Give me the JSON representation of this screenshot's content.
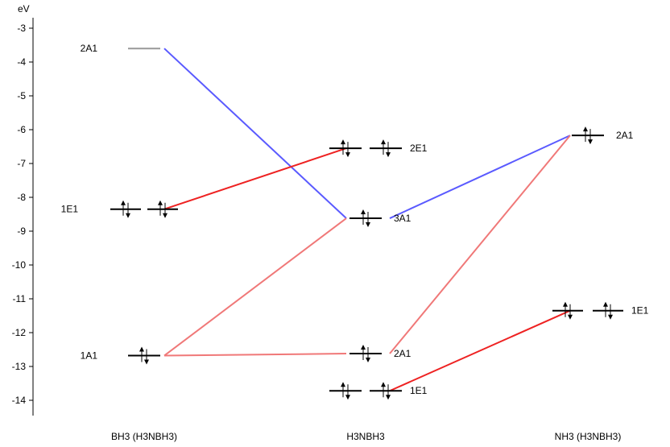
{
  "axis": {
    "unit_label": "eV",
    "ticks": [
      -3,
      -4,
      -5,
      -6,
      -7,
      -8,
      -9,
      -10,
      -11,
      -12,
      -13,
      -14
    ]
  },
  "columns": [
    {
      "id": "bh3",
      "label": "BH3 (H3NBH3)"
    },
    {
      "id": "h3nbh3",
      "label": "H3NBH3"
    },
    {
      "id": "nh3",
      "label": "NH3 (H3NBH3)"
    }
  ],
  "levels": [
    {
      "id": "bh3-2a1",
      "column": "bh3",
      "label": "2A1",
      "energy": -3.6,
      "degeneracy": 1,
      "electrons": 0,
      "color": "#999999"
    },
    {
      "id": "bh3-1e1",
      "column": "bh3",
      "label": "1E1",
      "energy": -8.35,
      "degeneracy": 2,
      "electrons": 4,
      "color": "#000000"
    },
    {
      "id": "bh3-1a1",
      "column": "bh3",
      "label": "1A1",
      "energy": -12.68,
      "degeneracy": 1,
      "electrons": 2,
      "color": "#000000"
    },
    {
      "id": "h3nbh3-2e1",
      "column": "h3nbh3",
      "label": "2E1",
      "energy": -6.55,
      "degeneracy": 2,
      "electrons": 4,
      "color": "#000000"
    },
    {
      "id": "h3nbh3-3a1",
      "column": "h3nbh3",
      "label": "3A1",
      "energy": -8.62,
      "degeneracy": 1,
      "electrons": 2,
      "color": "#000000"
    },
    {
      "id": "h3nbh3-2a1",
      "column": "h3nbh3",
      "label": "2A1",
      "energy": -12.62,
      "degeneracy": 1,
      "electrons": 2,
      "color": "#000000"
    },
    {
      "id": "h3nbh3-1e1",
      "column": "h3nbh3",
      "label": "1E1",
      "energy": -13.72,
      "degeneracy": 2,
      "electrons": 4,
      "color": "#000000"
    },
    {
      "id": "nh3-2a1",
      "column": "nh3",
      "label": "2A1",
      "energy": -6.17,
      "degeneracy": 1,
      "electrons": 2,
      "color": "#000000"
    },
    {
      "id": "nh3-1e1",
      "column": "nh3",
      "label": "1E1",
      "energy": -11.35,
      "degeneracy": 2,
      "electrons": 4,
      "color": "#000000"
    }
  ],
  "correlations": [
    {
      "from": "bh3-2a1",
      "to": "h3nbh3-3a1",
      "color": "#5a5aff"
    },
    {
      "from": "bh3-1e1",
      "to": "h3nbh3-2e1",
      "color": "#ee2222"
    },
    {
      "from": "bh3-1a1",
      "to": "h3nbh3-3a1",
      "color": "#f07878"
    },
    {
      "from": "bh3-1a1",
      "to": "h3nbh3-2a1",
      "color": "#f07878"
    },
    {
      "from": "h3nbh3-3a1",
      "to": "nh3-2a1",
      "color": "#5a5aff"
    },
    {
      "from": "h3nbh3-2a1",
      "to": "nh3-2a1",
      "color": "#f07878"
    },
    {
      "from": "h3nbh3-1e1",
      "to": "nh3-1e1",
      "color": "#ee2222"
    }
  ]
}
